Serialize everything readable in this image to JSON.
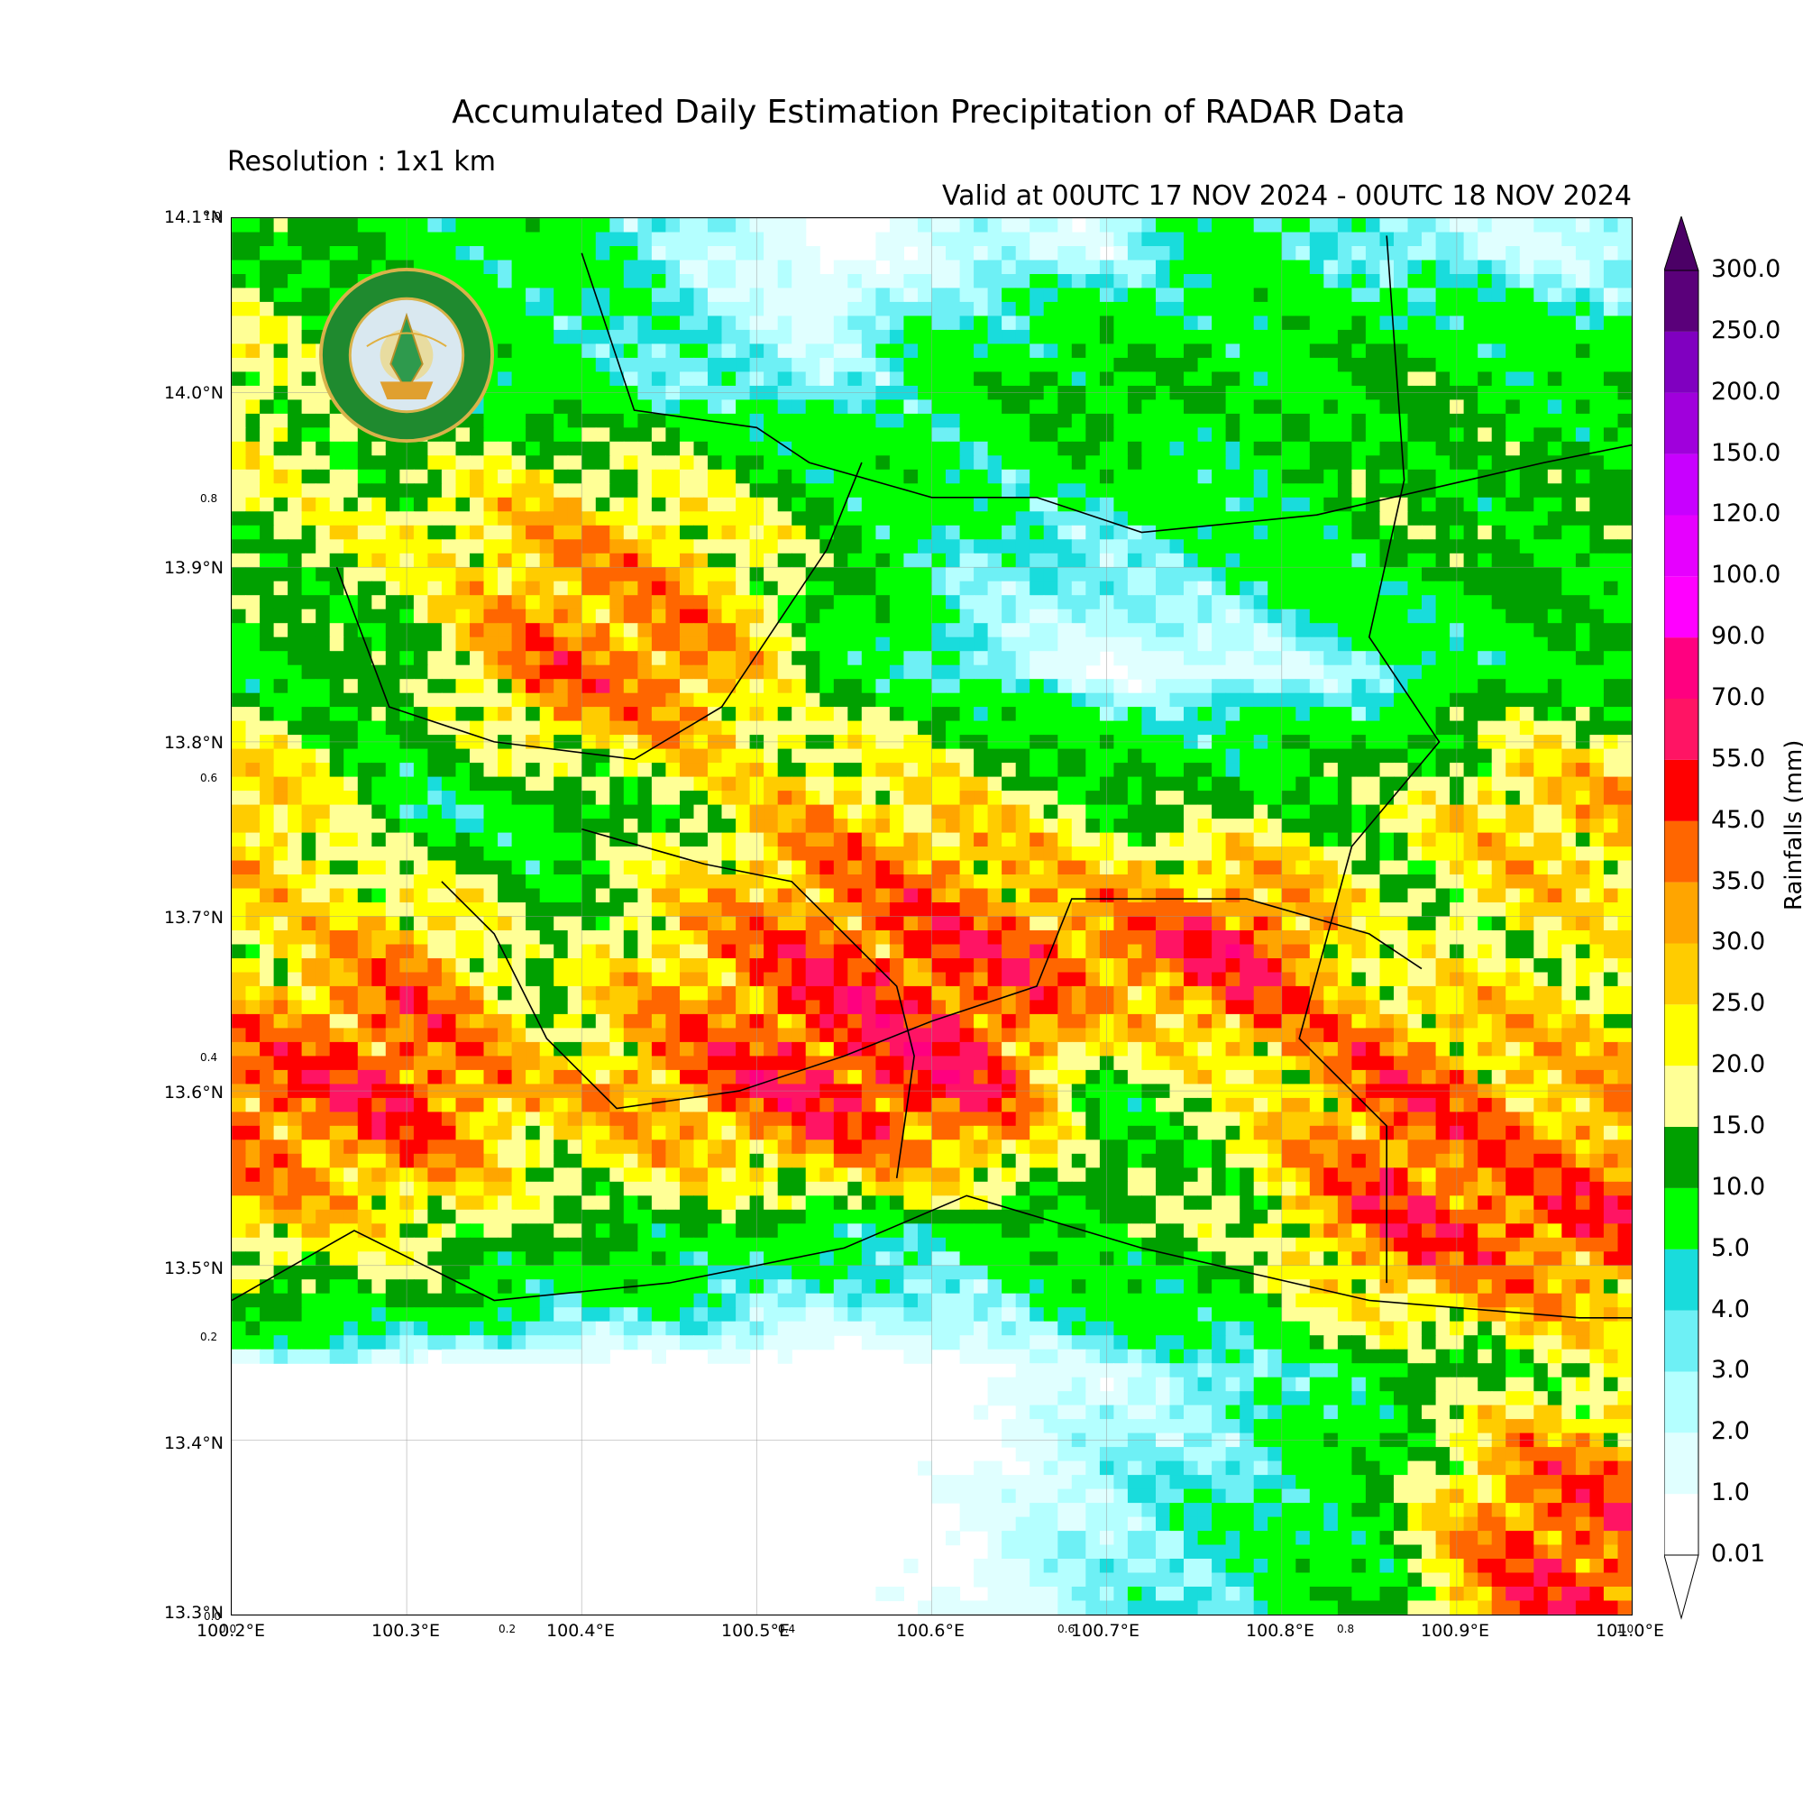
{
  "header": {
    "title": "Accumulated Daily Estimation Precipitation of RADAR Data",
    "resolution": "Resolution : 1x1 km",
    "valid": "Valid at 00UTC 17 NOV 2024 - 00UTC 18 NOV 2024"
  },
  "logo": {
    "text_thai": "กรมอุตุนิยมวิทยา",
    "text_en": "METEOROLOGICAL DEPARTMENT"
  },
  "axes": {
    "lat_labels": [
      "14.1°N",
      "14.0°N",
      "13.9°N",
      "13.8°N",
      "13.7°N",
      "13.6°N",
      "13.5°N",
      "13.4°N",
      "13.3°N"
    ],
    "lon_labels": [
      "100.2°E",
      "100.3°E",
      "100.4°E",
      "100.5°E",
      "100.6°E",
      "100.7°E",
      "100.8°E",
      "100.9°E",
      "101.0°E"
    ],
    "minor_y": [
      "1.0",
      "0.8",
      "0.6",
      "0.4",
      "0.2",
      "0.0"
    ],
    "minor_x": [
      "0.0",
      "0.2",
      "0.4",
      "0.6",
      "0.8",
      "1.0"
    ]
  },
  "colorbar": {
    "label": "Rainfalls (mm)",
    "ticks": [
      "0.01",
      "1.0",
      "2.0",
      "3.0",
      "4.0",
      "5.0",
      "10.0",
      "15.0",
      "20.0",
      "25.0",
      "30.0",
      "35.0",
      "45.0",
      "55.0",
      "70.0",
      "90.0",
      "100.0",
      "120.0",
      "150.0",
      "200.0",
      "250.0",
      "300.0"
    ],
    "colors": [
      "#ffffff",
      "#e0ffff",
      "#b4ffff",
      "#6ef0f5",
      "#19dcdc",
      "#00ff00",
      "#00a000",
      "#ffff96",
      "#ffff00",
      "#ffcc00",
      "#ffa500",
      "#ff6600",
      "#ff0000",
      "#ff1464",
      "#ff0080",
      "#ff00ff",
      "#e600ff",
      "#c800ff",
      "#a000dc",
      "#8000c0",
      "#5a007a"
    ]
  },
  "chart_data": {
    "type": "heatmap",
    "title": "Accumulated Daily Estimation Precipitation of RADAR Data",
    "xlabel": "",
    "ylabel": "",
    "xlim": [
      100.2,
      101.0
    ],
    "ylim": [
      13.3,
      14.1
    ],
    "colorbar_label": "Rainfalls (mm)",
    "levels": [
      0.01,
      1,
      2,
      3,
      4,
      5,
      10,
      15,
      20,
      25,
      30,
      35,
      45,
      55,
      70,
      90,
      100,
      120,
      150,
      200,
      250,
      300
    ],
    "cells": [
      {
        "lon": 100.22,
        "lat": 14.08,
        "mm": 12
      },
      {
        "lon": 100.3,
        "lat": 14.08,
        "mm": 8
      },
      {
        "lon": 100.38,
        "lat": 14.08,
        "mm": 7
      },
      {
        "lon": 100.46,
        "lat": 14.08,
        "mm": 3
      },
      {
        "lon": 100.54,
        "lat": 14.08,
        "mm": 0.5
      },
      {
        "lon": 100.62,
        "lat": 14.08,
        "mm": 2
      },
      {
        "lon": 100.7,
        "lat": 14.08,
        "mm": 2
      },
      {
        "lon": 100.78,
        "lat": 14.08,
        "mm": 7
      },
      {
        "lon": 100.86,
        "lat": 14.08,
        "mm": 3
      },
      {
        "lon": 100.94,
        "lat": 14.08,
        "mm": 2
      },
      {
        "lon": 100.22,
        "lat": 14.0,
        "mm": 20
      },
      {
        "lon": 100.3,
        "lat": 14.0,
        "mm": 8
      },
      {
        "lon": 100.38,
        "lat": 14.0,
        "mm": 6
      },
      {
        "lon": 100.46,
        "lat": 14.0,
        "mm": 4
      },
      {
        "lon": 100.54,
        "lat": 14.0,
        "mm": 3
      },
      {
        "lon": 100.62,
        "lat": 14.0,
        "mm": 8
      },
      {
        "lon": 100.7,
        "lat": 14.0,
        "mm": 12
      },
      {
        "lon": 100.78,
        "lat": 14.0,
        "mm": 8
      },
      {
        "lon": 100.86,
        "lat": 14.0,
        "mm": 12
      },
      {
        "lon": 100.94,
        "lat": 14.0,
        "mm": 9
      },
      {
        "lon": 100.22,
        "lat": 13.92,
        "mm": 15
      },
      {
        "lon": 100.3,
        "lat": 13.92,
        "mm": 20
      },
      {
        "lon": 100.38,
        "lat": 13.92,
        "mm": 30
      },
      {
        "lon": 100.46,
        "lat": 13.92,
        "mm": 25
      },
      {
        "lon": 100.54,
        "lat": 13.92,
        "mm": 12
      },
      {
        "lon": 100.62,
        "lat": 13.92,
        "mm": 4
      },
      {
        "lon": 100.7,
        "lat": 13.92,
        "mm": 4
      },
      {
        "lon": 100.78,
        "lat": 13.92,
        "mm": 6
      },
      {
        "lon": 100.86,
        "lat": 13.92,
        "mm": 12
      },
      {
        "lon": 100.94,
        "lat": 13.92,
        "mm": 12
      },
      {
        "lon": 100.22,
        "lat": 13.84,
        "mm": 8
      },
      {
        "lon": 100.3,
        "lat": 13.84,
        "mm": 12
      },
      {
        "lon": 100.38,
        "lat": 13.84,
        "mm": 40
      },
      {
        "lon": 100.46,
        "lat": 13.84,
        "mm": 40
      },
      {
        "lon": 100.54,
        "lat": 13.84,
        "mm": 8
      },
      {
        "lon": 100.62,
        "lat": 13.84,
        "mm": 3
      },
      {
        "lon": 100.7,
        "lat": 13.84,
        "mm": 1
      },
      {
        "lon": 100.78,
        "lat": 13.84,
        "mm": 1.5
      },
      {
        "lon": 100.86,
        "lat": 13.84,
        "mm": 3
      },
      {
        "lon": 100.94,
        "lat": 13.84,
        "mm": 8
      },
      {
        "lon": 100.22,
        "lat": 13.76,
        "mm": 30
      },
      {
        "lon": 100.3,
        "lat": 13.76,
        "mm": 5
      },
      {
        "lon": 100.38,
        "lat": 13.76,
        "mm": 6
      },
      {
        "lon": 100.46,
        "lat": 13.76,
        "mm": 15
      },
      {
        "lon": 100.54,
        "lat": 13.76,
        "mm": 30
      },
      {
        "lon": 100.62,
        "lat": 13.76,
        "mm": 25
      },
      {
        "lon": 100.7,
        "lat": 13.76,
        "mm": 12
      },
      {
        "lon": 100.78,
        "lat": 13.76,
        "mm": 12
      },
      {
        "lon": 100.86,
        "lat": 13.76,
        "mm": 15
      },
      {
        "lon": 100.94,
        "lat": 13.76,
        "mm": 30
      },
      {
        "lon": 100.22,
        "lat": 13.68,
        "mm": 20
      },
      {
        "lon": 100.3,
        "lat": 13.68,
        "mm": 35
      },
      {
        "lon": 100.38,
        "lat": 13.68,
        "mm": 12
      },
      {
        "lon": 100.46,
        "lat": 13.68,
        "mm": 30
      },
      {
        "lon": 100.54,
        "lat": 13.68,
        "mm": 45
      },
      {
        "lon": 100.62,
        "lat": 13.68,
        "mm": 45
      },
      {
        "lon": 100.7,
        "lat": 13.68,
        "mm": 40
      },
      {
        "lon": 100.78,
        "lat": 13.68,
        "mm": 55
      },
      {
        "lon": 100.86,
        "lat": 13.68,
        "mm": 15
      },
      {
        "lon": 100.94,
        "lat": 13.68,
        "mm": 20
      },
      {
        "lon": 100.22,
        "lat": 13.6,
        "mm": 45
      },
      {
        "lon": 100.3,
        "lat": 13.6,
        "mm": 50
      },
      {
        "lon": 100.38,
        "lat": 13.6,
        "mm": 25
      },
      {
        "lon": 100.46,
        "lat": 13.6,
        "mm": 40
      },
      {
        "lon": 100.54,
        "lat": 13.6,
        "mm": 55
      },
      {
        "lon": 100.62,
        "lat": 13.6,
        "mm": 55
      },
      {
        "lon": 100.7,
        "lat": 13.6,
        "mm": 8
      },
      {
        "lon": 100.78,
        "lat": 13.6,
        "mm": 20
      },
      {
        "lon": 100.86,
        "lat": 13.6,
        "mm": 45
      },
      {
        "lon": 100.94,
        "lat": 13.6,
        "mm": 30
      },
      {
        "lon": 100.22,
        "lat": 13.52,
        "mm": 25
      },
      {
        "lon": 100.3,
        "lat": 13.52,
        "mm": 20
      },
      {
        "lon": 100.38,
        "lat": 13.52,
        "mm": 12
      },
      {
        "lon": 100.46,
        "lat": 13.52,
        "mm": 10
      },
      {
        "lon": 100.54,
        "lat": 13.52,
        "mm": 6
      },
      {
        "lon": 100.62,
        "lat": 13.52,
        "mm": 6
      },
      {
        "lon": 100.7,
        "lat": 13.52,
        "mm": 12
      },
      {
        "lon": 100.78,
        "lat": 13.52,
        "mm": 15
      },
      {
        "lon": 100.86,
        "lat": 13.52,
        "mm": 45
      },
      {
        "lon": 100.94,
        "lat": 13.52,
        "mm": 45
      },
      {
        "lon": 100.22,
        "lat": 13.44,
        "mm": 0
      },
      {
        "lon": 100.3,
        "lat": 13.44,
        "mm": 0
      },
      {
        "lon": 100.38,
        "lat": 13.44,
        "mm": 0
      },
      {
        "lon": 100.46,
        "lat": 13.44,
        "mm": 0
      },
      {
        "lon": 100.54,
        "lat": 13.44,
        "mm": 0
      },
      {
        "lon": 100.62,
        "lat": 13.44,
        "mm": 0.5
      },
      {
        "lon": 100.7,
        "lat": 13.44,
        "mm": 2
      },
      {
        "lon": 100.78,
        "lat": 13.44,
        "mm": 3
      },
      {
        "lon": 100.86,
        "lat": 13.44,
        "mm": 8
      },
      {
        "lon": 100.94,
        "lat": 13.44,
        "mm": 15
      },
      {
        "lon": 100.22,
        "lat": 13.36,
        "mm": 0
      },
      {
        "lon": 100.3,
        "lat": 13.36,
        "mm": 0
      },
      {
        "lon": 100.38,
        "lat": 13.36,
        "mm": 0
      },
      {
        "lon": 100.46,
        "lat": 13.36,
        "mm": 0
      },
      {
        "lon": 100.54,
        "lat": 13.36,
        "mm": 0.5
      },
      {
        "lon": 100.62,
        "lat": 13.36,
        "mm": 1
      },
      {
        "lon": 100.7,
        "lat": 13.36,
        "mm": 3
      },
      {
        "lon": 100.78,
        "lat": 13.36,
        "mm": 5
      },
      {
        "lon": 100.86,
        "lat": 13.36,
        "mm": 10
      },
      {
        "lon": 100.94,
        "lat": 13.36,
        "mm": 45
      }
    ]
  }
}
